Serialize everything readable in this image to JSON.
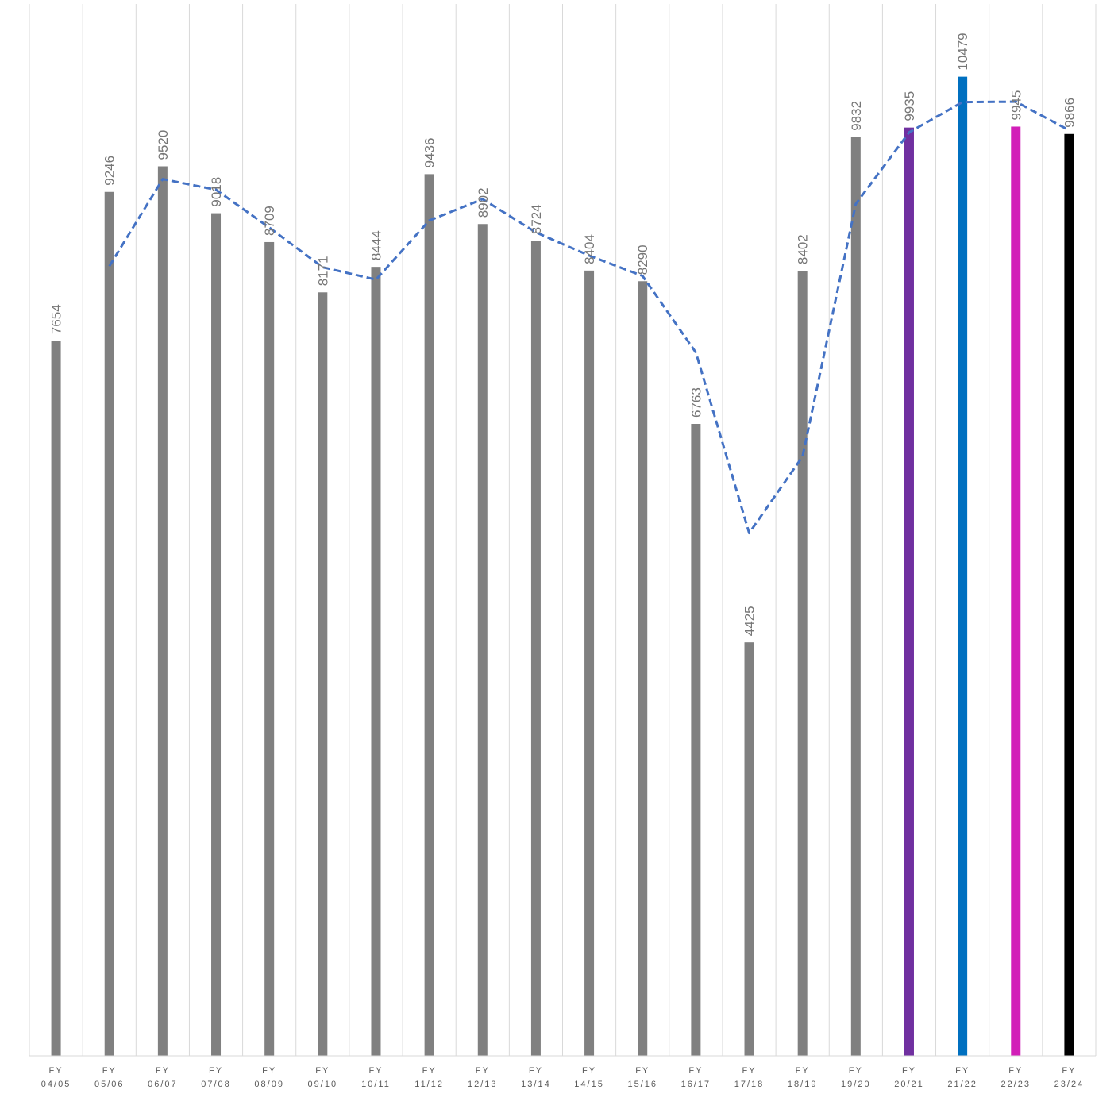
{
  "chart_data": {
    "type": "bar",
    "title": "",
    "xlabel": "",
    "ylabel": "",
    "ylim": [
      0,
      11300
    ],
    "grid": "vertical",
    "legend": "none",
    "categories": [
      {
        "line1": "FY",
        "line2": "04/05"
      },
      {
        "line1": "FY",
        "line2": "05/06"
      },
      {
        "line1": "FY",
        "line2": "06/07"
      },
      {
        "line1": "FY",
        "line2": "07/08"
      },
      {
        "line1": "FY",
        "line2": "08/09"
      },
      {
        "line1": "FY",
        "line2": "09/10"
      },
      {
        "line1": "FY",
        "line2": "10/11"
      },
      {
        "line1": "FY",
        "line2": "11/12"
      },
      {
        "line1": "FY",
        "line2": "12/13"
      },
      {
        "line1": "FY",
        "line2": "13/14"
      },
      {
        "line1": "FY",
        "line2": "14/15"
      },
      {
        "line1": "FY",
        "line2": "15/16"
      },
      {
        "line1": "FY",
        "line2": "16/17"
      },
      {
        "line1": "FY",
        "line2": "17/18"
      },
      {
        "line1": "FY",
        "line2": "18/19"
      },
      {
        "line1": "FY",
        "line2": "19/20"
      },
      {
        "line1": "FY",
        "line2": "20/21"
      },
      {
        "line1": "FY",
        "line2": "21/22"
      },
      {
        "line1": "FY",
        "line2": "22/23"
      },
      {
        "line1": "FY",
        "line2": "23/24"
      }
    ],
    "values": [
      7654,
      9246,
      9520,
      9018,
      8709,
      8171,
      8444,
      9436,
      8902,
      8724,
      8404,
      8290,
      6763,
      4425,
      8402,
      9832,
      9935,
      10479,
      9945,
      9866
    ],
    "value_labels": [
      "7654",
      "9246",
      "9520",
      "9018",
      "8709",
      "8171",
      "8444",
      "9436",
      "8902",
      "8724",
      "8404",
      "8290",
      "6763",
      "4425",
      "8402",
      "9832",
      "9935",
      "10479",
      "9945",
      "9866"
    ],
    "bar_colors": [
      "#808080",
      "#808080",
      "#808080",
      "#808080",
      "#808080",
      "#808080",
      "#808080",
      "#808080",
      "#808080",
      "#808080",
      "#808080",
      "#808080",
      "#808080",
      "#808080",
      "#808080",
      "#808080",
      "#7030a0",
      "#0070c0",
      "#d21fb8",
      "#000000"
    ],
    "trendline": {
      "type": "two-period moving average",
      "style": "dashed",
      "color": "#4472c4",
      "values": [
        null,
        8450,
        9383,
        9269,
        8864,
        8440,
        8308,
        8940,
        9169,
        8813,
        8564,
        8347,
        7527,
        5594,
        6414,
        9117,
        9884,
        10207,
        10212,
        9906
      ]
    },
    "colors": {
      "default_bar": "#808080",
      "gridline": "#d9d9d9",
      "axis": "#d9d9d9",
      "value_label": "#767676",
      "tick_label": "#595959"
    }
  }
}
